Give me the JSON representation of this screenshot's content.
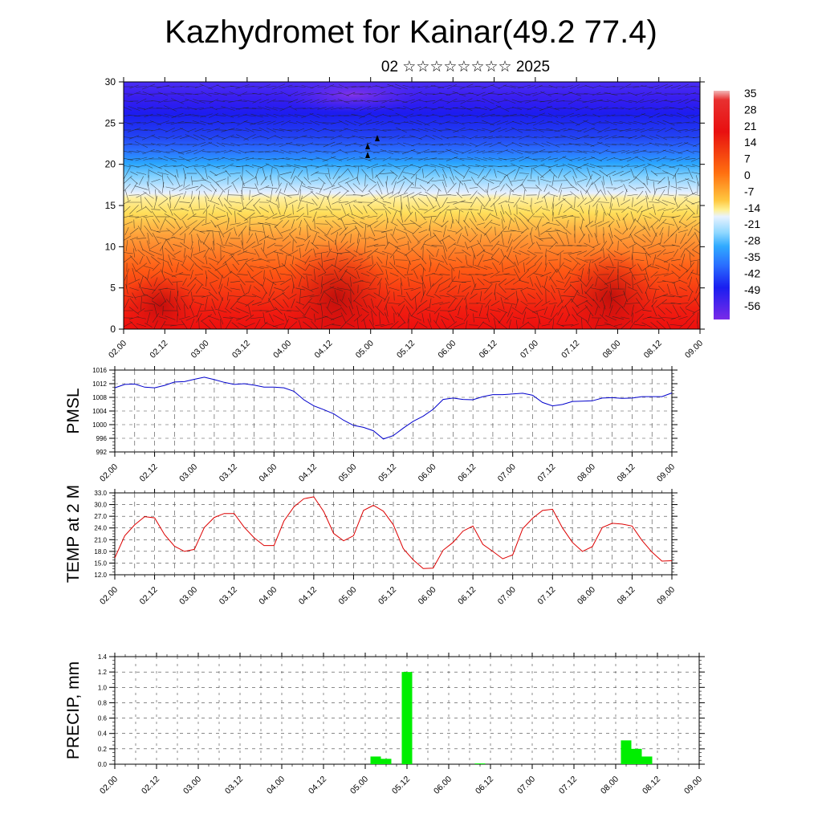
{
  "header": {
    "title": "Kazhydromet for Kainar(49.2 77.4)",
    "subtitle": "02 ☆☆☆☆☆☆☆☆ 2025"
  },
  "colors": {
    "pmsl_line": "#0000cc",
    "temp_line": "#dd0000",
    "precip_bar": "#00ee00"
  },
  "chart_data": [
    {
      "type": "heatmap",
      "name": "cross-section",
      "ylim": [
        0,
        30
      ],
      "yticks": [
        "0",
        "5",
        "10",
        "15",
        "20",
        "25",
        "30"
      ],
      "xticks": [
        "02.00",
        "02.12",
        "03.00",
        "03.12",
        "04.00",
        "04.12",
        "05.00",
        "05.12",
        "06.00",
        "06.12",
        "07.00",
        "07.12",
        "08.00",
        "08.12",
        "09.00"
      ],
      "colorbar": {
        "labels": [
          "35",
          "28",
          "21",
          "14",
          "7",
          "0",
          "-7",
          "-14",
          "-21",
          "-28",
          "-35",
          "-42",
          "-49",
          "-56"
        ],
        "range": [
          -63,
          35
        ]
      }
    },
    {
      "type": "line",
      "ylabel": "PMSL",
      "ylim": [
        992,
        1016
      ],
      "yticks": [
        "1016",
        "1012",
        "1008",
        "1004",
        "1000",
        "996",
        "992"
      ],
      "xticks": [
        "02.00",
        "02.12",
        "03.00",
        "03.12",
        "04.00",
        "04.12",
        "05.00",
        "05.12",
        "06.00",
        "06.12",
        "07.00",
        "07.12",
        "08.00",
        "08.12",
        "09.00"
      ],
      "x": [
        0,
        3,
        6,
        9,
        12,
        15,
        18,
        21,
        24,
        27,
        30,
        33,
        36,
        39,
        42,
        45,
        48,
        51,
        54,
        57,
        60,
        63,
        66,
        69,
        72,
        75,
        78,
        81,
        84,
        87,
        90,
        93,
        96,
        99,
        102,
        105,
        108,
        111,
        114,
        117,
        120,
        123,
        126,
        129,
        132,
        135,
        138,
        141,
        144,
        147,
        150,
        153,
        156,
        159,
        162,
        165,
        168
      ],
      "values": [
        1010.8,
        1011.8,
        1011.9,
        1011.0,
        1010.8,
        1011.5,
        1012.5,
        1012.6,
        1013.3,
        1013.9,
        1013.2,
        1012.4,
        1011.8,
        1012.0,
        1011.6,
        1011.0,
        1011.0,
        1010.8,
        1009.8,
        1007.3,
        1005.5,
        1004.4,
        1003.2,
        1001.3,
        999.8,
        999.2,
        998.2,
        995.8,
        996.8,
        999.0,
        1001.0,
        1002.5,
        1004.5,
        1007.4,
        1007.8,
        1007.4,
        1007.3,
        1008.2,
        1008.8,
        1008.8,
        1009.0,
        1009.2,
        1008.6,
        1006.5,
        1005.5,
        1005.9,
        1006.8,
        1006.9,
        1007.0,
        1007.8,
        1007.9,
        1007.7,
        1007.8,
        1008.2,
        1008.2,
        1008.2,
        1009.3
      ]
    },
    {
      "type": "line",
      "ylabel": "TEMP at 2 M",
      "ylim": [
        12,
        33
      ],
      "yticks": [
        "33.0",
        "30.0",
        "27.0",
        "24.0",
        "21.0",
        "18.0",
        "15.0",
        "12.0"
      ],
      "xticks": [
        "02.00",
        "02.12",
        "03.00",
        "03.12",
        "04.00",
        "04.12",
        "05.00",
        "05.12",
        "06.00",
        "06.12",
        "07.00",
        "07.12",
        "08.00",
        "08.12",
        "09.00"
      ],
      "x": [
        0,
        3,
        6,
        9,
        12,
        15,
        18,
        21,
        24,
        27,
        30,
        33,
        36,
        39,
        42,
        45,
        48,
        51,
        54,
        57,
        60,
        63,
        66,
        69,
        72,
        75,
        78,
        81,
        84,
        87,
        90,
        93,
        96,
        99,
        102,
        105,
        108,
        111,
        114,
        117,
        120,
        123,
        126,
        129,
        132,
        135,
        138,
        141,
        144,
        147,
        150,
        153,
        156,
        159,
        162,
        165,
        168
      ],
      "values": [
        16.3,
        22.0,
        24.8,
        26.9,
        26.6,
        22.3,
        19.3,
        18.0,
        18.5,
        24.1,
        26.7,
        27.7,
        27.7,
        24.2,
        21.5,
        19.5,
        19.5,
        25.8,
        29.4,
        31.5,
        32.0,
        28.2,
        22.6,
        20.7,
        22.0,
        28.5,
        29.8,
        28.3,
        24.8,
        18.7,
        15.8,
        13.6,
        13.7,
        18.3,
        20.3,
        23.2,
        24.5,
        19.8,
        18.0,
        16.1,
        17.1,
        23.8,
        26.5,
        28.5,
        28.8,
        24.0,
        20.3,
        18.0,
        19.2,
        24.1,
        25.2,
        25.0,
        24.5,
        20.8,
        17.8,
        15.5,
        15.6
      ]
    },
    {
      "type": "bar",
      "ylabel": "PRECIP, mm",
      "ylim": [
        0,
        1.4
      ],
      "yticks": [
        "1.4",
        "1.2",
        "1.0",
        "0.8",
        "0.6",
        "0.4",
        "0.2",
        "0.0"
      ],
      "xticks": [
        "02.00",
        "02.12",
        "03.00",
        "03.12",
        "04.00",
        "04.12",
        "05.00",
        "05.12",
        "06.00",
        "06.12",
        "07.00",
        "07.12",
        "08.00",
        "08.12",
        "09.00"
      ],
      "bars": [
        {
          "x": 75,
          "value": 0.1
        },
        {
          "x": 78,
          "value": 0.07
        },
        {
          "x": 84,
          "value": 1.2
        },
        {
          "x": 105,
          "value": 0.01
        },
        {
          "x": 147,
          "value": 0.31
        },
        {
          "x": 150,
          "value": 0.2
        },
        {
          "x": 153,
          "value": 0.1
        }
      ]
    }
  ]
}
